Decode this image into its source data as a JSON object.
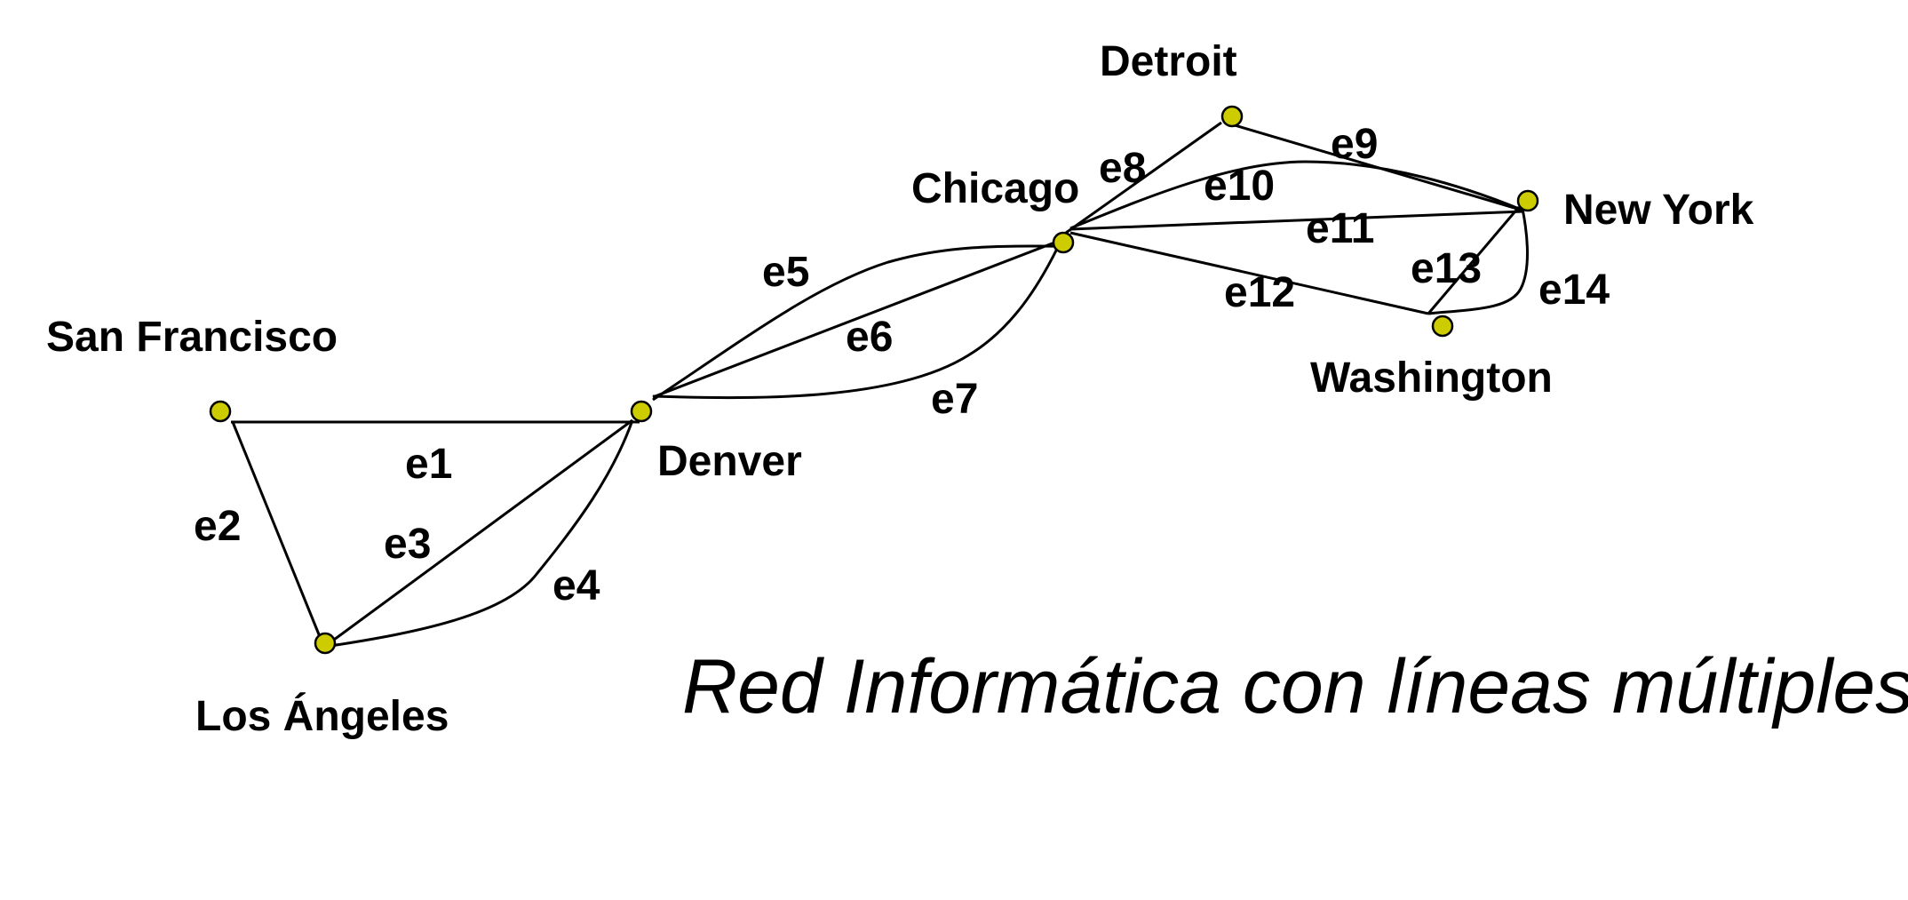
{
  "title": "Red Informática con líneas múltiples",
  "colors": {
    "node_fill": "#cccc00",
    "stroke": "#000000"
  },
  "nodes": [
    {
      "id": "san-francisco",
      "label": "San Francisco"
    },
    {
      "id": "los-angeles",
      "label": "Los Ángeles"
    },
    {
      "id": "denver",
      "label": "Denver"
    },
    {
      "id": "chicago",
      "label": "Chicago"
    },
    {
      "id": "detroit",
      "label": "Detroit"
    },
    {
      "id": "new-york",
      "label": "New York"
    },
    {
      "id": "washington",
      "label": "Washington"
    }
  ],
  "edges": [
    {
      "id": "e1",
      "label": "e1",
      "from": "san-francisco",
      "to": "denver"
    },
    {
      "id": "e2",
      "label": "e2",
      "from": "san-francisco",
      "to": "los-angeles"
    },
    {
      "id": "e3",
      "label": "e3",
      "from": "los-angeles",
      "to": "denver"
    },
    {
      "id": "e4",
      "label": "e4",
      "from": "los-angeles",
      "to": "denver"
    },
    {
      "id": "e5",
      "label": "e5",
      "from": "denver",
      "to": "chicago"
    },
    {
      "id": "e6",
      "label": "e6",
      "from": "denver",
      "to": "chicago"
    },
    {
      "id": "e7",
      "label": "e7",
      "from": "denver",
      "to": "chicago"
    },
    {
      "id": "e8",
      "label": "e8",
      "from": "chicago",
      "to": "detroit"
    },
    {
      "id": "e9",
      "label": "e9",
      "from": "detroit",
      "to": "new-york"
    },
    {
      "id": "e10",
      "label": "e10",
      "from": "chicago",
      "to": "new-york"
    },
    {
      "id": "e11",
      "label": "e11",
      "from": "chicago",
      "to": "new-york"
    },
    {
      "id": "e12",
      "label": "e12",
      "from": "chicago",
      "to": "washington"
    },
    {
      "id": "e13",
      "label": "e13",
      "from": "washington",
      "to": "new-york"
    },
    {
      "id": "e14",
      "label": "e14",
      "from": "washington",
      "to": "new-york"
    }
  ]
}
